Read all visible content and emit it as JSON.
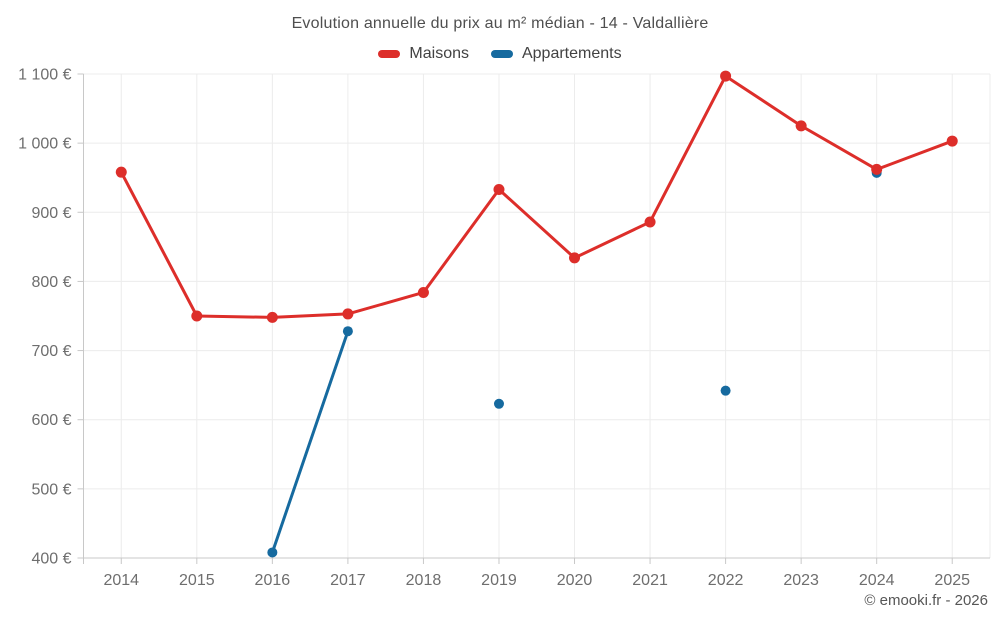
{
  "title": "Evolution annuelle du prix au m² médian - 14 - Valdallière",
  "legend": [
    {
      "label": "Maisons",
      "color": "#dd2e2a"
    },
    {
      "label": "Appartements",
      "color": "#166a9f"
    }
  ],
  "footer": "© emooki.fr - 2026",
  "colors": {
    "grid": "#ececec",
    "axis": "#c8c8c8",
    "tick_label": "#6e6e6e",
    "title_text": "#4f4f4f",
    "background": "#ffffff"
  },
  "chart_data": {
    "type": "line",
    "title": "Evolution annuelle du prix au m² médian - 14 - Valdallière",
    "x": [
      "2014",
      "2015",
      "2016",
      "2017",
      "2018",
      "2019",
      "2020",
      "2021",
      "2022",
      "2023",
      "2024",
      "2025"
    ],
    "series": [
      {
        "name": "Maisons",
        "color": "#dd2e2a",
        "values": [
          958,
          750,
          748,
          753,
          784,
          933,
          834,
          886,
          1097,
          1025,
          962,
          1003
        ]
      },
      {
        "name": "Appartements",
        "color": "#166a9f",
        "values": [
          null,
          null,
          408,
          728,
          null,
          623,
          null,
          null,
          642,
          null,
          957,
          null
        ]
      }
    ],
    "ylim": [
      400,
      1100
    ],
    "yticks": [
      {
        "value": 400,
        "label": "400 €"
      },
      {
        "value": 500,
        "label": "500 €"
      },
      {
        "value": 600,
        "label": "600 €"
      },
      {
        "value": 700,
        "label": "700 €"
      },
      {
        "value": 800,
        "label": "800 €"
      },
      {
        "value": 900,
        "label": "900 €"
      },
      {
        "value": 1000,
        "label": "1 000 €"
      },
      {
        "value": 1100,
        "label": "1 100 €"
      }
    ],
    "grid": true,
    "legend_position": "top",
    "currency": "€"
  }
}
